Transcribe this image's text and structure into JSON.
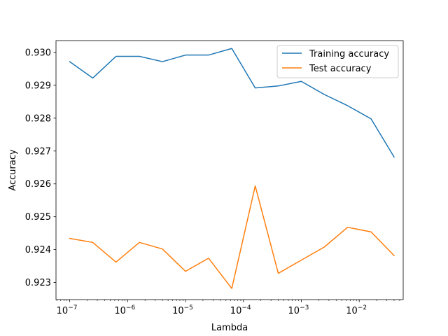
{
  "chart_data": {
    "type": "line",
    "title": "",
    "xlabel": "Lambda",
    "ylabel": "Accuracy",
    "xscale": "log",
    "xlim": [
      5.8e-08,
      0.0575
    ],
    "ylim": [
      0.92248,
      0.93036
    ],
    "x_ticks": [
      {
        "value": 1e-07,
        "base": "10",
        "exp": "−7"
      },
      {
        "value": 1e-06,
        "base": "10",
        "exp": "−6"
      },
      {
        "value": 1e-05,
        "base": "10",
        "exp": "−5"
      },
      {
        "value": 0.0001,
        "base": "10",
        "exp": "−4"
      },
      {
        "value": 0.001,
        "base": "10",
        "exp": "−3"
      },
      {
        "value": 0.01,
        "base": "10",
        "exp": "−2"
      }
    ],
    "y_ticks": [
      {
        "value": 0.923,
        "label": "0.923"
      },
      {
        "value": 0.924,
        "label": "0.924"
      },
      {
        "value": 0.925,
        "label": "0.925"
      },
      {
        "value": 0.926,
        "label": "0.926"
      },
      {
        "value": 0.927,
        "label": "0.927"
      },
      {
        "value": 0.928,
        "label": "0.928"
      },
      {
        "value": 0.929,
        "label": "0.929"
      },
      {
        "value": 0.93,
        "label": "0.930"
      }
    ],
    "grid": false,
    "legend_position": "top-right",
    "x": [
      1e-07,
      2.5e-07,
      6.3e-07,
      1.6e-06,
      4e-06,
      1e-05,
      2.5e-05,
      6.3e-05,
      0.00016,
      0.0004,
      0.001,
      0.0025,
      0.0063,
      0.016,
      0.04
    ],
    "series": [
      {
        "name": "Training accuracy",
        "color": "#1f77b4",
        "values": [
          0.92972,
          0.92922,
          0.92988,
          0.92988,
          0.92972,
          0.92992,
          0.92992,
          0.93012,
          0.92892,
          0.92898,
          0.92912,
          0.92872,
          0.92838,
          0.92798,
          0.92682
        ]
      },
      {
        "name": "Test accuracy",
        "color": "#ff7f0e",
        "values": [
          0.92434,
          0.92422,
          0.92362,
          0.92422,
          0.92402,
          0.92334,
          0.92374,
          0.92282,
          0.92594,
          0.92328,
          0.92368,
          0.92408,
          0.92468,
          0.92454,
          0.92382
        ]
      }
    ]
  }
}
